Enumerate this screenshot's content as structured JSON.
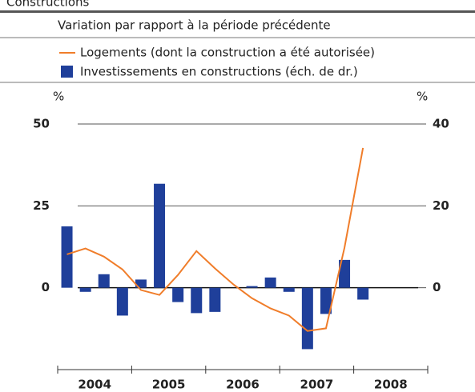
{
  "chart_data": {
    "type": "bar_line",
    "title": "Constructions",
    "subtitle": "Variation par rapport à la période précédente",
    "y_unit": "%",
    "y2_unit": "%",
    "categories": [
      null,
      null,
      null,
      null,
      null,
      null,
      null,
      null,
      null,
      null,
      null,
      null,
      null,
      null,
      null,
      null,
      null,
      null,
      null,
      null
    ],
    "year_labels": [
      "2004",
      "2005",
      "2006",
      "2007",
      "2008"
    ],
    "series": [
      {
        "name": "Logements (dont la construction a été autorisée)",
        "kind": "line",
        "color": "#f07d2a",
        "values": [
          10.2,
          12,
          9.5,
          5.6,
          -0.7,
          -2.2,
          3.9,
          11.2,
          5.9,
          1,
          -3.2,
          -6.3,
          -8.5,
          -13.2,
          -12.4,
          12.2,
          42.7,
          null,
          null,
          null
        ]
      },
      {
        "name": "Investissements en constructions (éch. de dr.)",
        "kind": "bar",
        "axis": "y2",
        "color": "#1f3f9a",
        "values": [
          15,
          -1,
          3.3,
          -6.8,
          2,
          25.4,
          -3.5,
          -6.2,
          -5.9,
          null,
          0.4,
          2.5,
          -1,
          -15,
          -6.4,
          6.8,
          -2.9,
          null,
          null,
          null
        ]
      }
    ],
    "ylim": [
      -25,
      50
    ],
    "yticks": [
      0,
      25,
      50
    ],
    "y2lim": [
      -20,
      40
    ],
    "y2ticks": [
      0,
      20,
      40
    ]
  }
}
